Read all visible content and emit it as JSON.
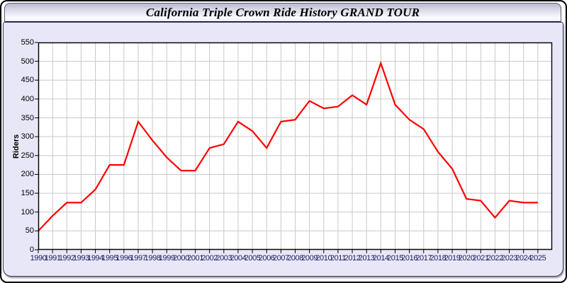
{
  "window": {
    "title": "California Triple Crown Ride History GRAND TOUR"
  },
  "chart_data": {
    "type": "line",
    "title": "California Triple Crown Ride History GRAND TOUR",
    "xlabel": "",
    "ylabel": "Riders",
    "x": [
      1990,
      1991,
      1992,
      1993,
      1994,
      1995,
      1996,
      1997,
      1998,
      1999,
      2000,
      2001,
      2002,
      2003,
      2004,
      2005,
      2006,
      2007,
      2008,
      2009,
      2010,
      2011,
      2012,
      2013,
      2014,
      2015,
      2016,
      2017,
      2018,
      2019,
      2020,
      2021,
      2022,
      2023,
      2024,
      2025
    ],
    "series": [
      {
        "name": "Riders",
        "values": [
          50,
          90,
          125,
          125,
          160,
          225,
          225,
          340,
          290,
          245,
          210,
          210,
          270,
          280,
          340,
          315,
          270,
          340,
          345,
          395,
          375,
          380,
          410,
          385,
          495,
          385,
          345,
          320,
          260,
          215,
          135,
          130,
          85,
          130,
          125,
          125
        ]
      }
    ],
    "ylim": [
      0,
      550
    ],
    "y_ticks": [
      0,
      50,
      100,
      150,
      200,
      250,
      300,
      350,
      400,
      450,
      500,
      550
    ],
    "grid": true,
    "legend": "none",
    "colors": {
      "line": "#ff0000",
      "grid": "#c9c9c9",
      "axis": "#000000",
      "plot_background": "#ffffff",
      "panel_background": "#e7e7f7",
      "x_tick_label": "#1d1d60",
      "y_tick_label": "#000000"
    }
  }
}
